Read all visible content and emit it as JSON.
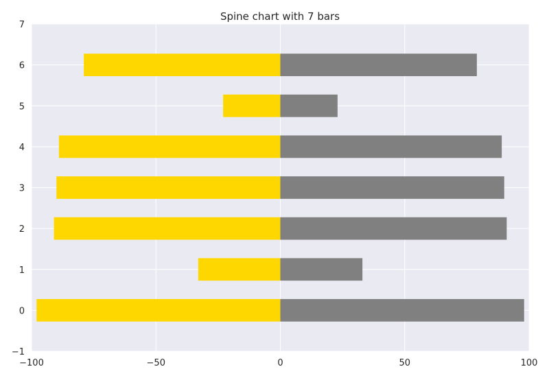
{
  "chart_data": {
    "type": "bar",
    "orientation": "horizontal",
    "title": "Spine chart with 7 bars",
    "xlabel": "",
    "ylabel": "",
    "categories": [
      0,
      1,
      2,
      3,
      4,
      5,
      6
    ],
    "series": [
      {
        "values": [
          -98,
          -33,
          -91,
          -90,
          -89,
          -23,
          -79
        ],
        "color": "#FFD700"
      },
      {
        "values": [
          98,
          33,
          91,
          90,
          89,
          23,
          79
        ],
        "color": "#808080"
      }
    ],
    "xlim": [
      -100,
      100
    ],
    "ylim": [
      -1,
      7
    ],
    "xticks": [
      "−100",
      "−50",
      "0",
      "50",
      "100"
    ],
    "yticks": [
      "−1",
      "0",
      "1",
      "2",
      "3",
      "4",
      "5",
      "6",
      "7"
    ],
    "grid": true,
    "background_color": "#EAEAF2",
    "grid_color": "#FFFFFF"
  }
}
